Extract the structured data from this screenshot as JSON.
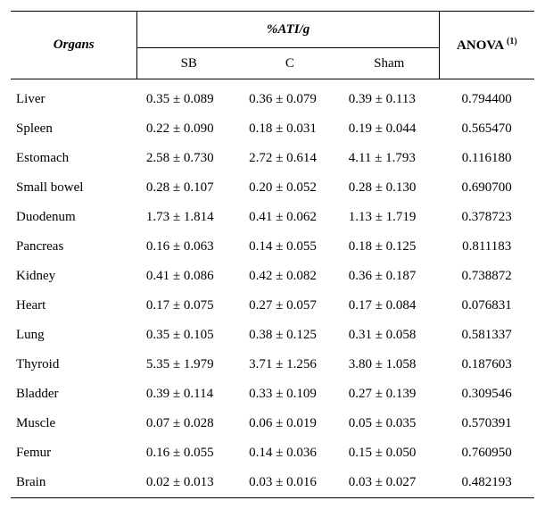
{
  "header": {
    "organs": "Organs",
    "ati": "%ATI/g",
    "anova_label": "ANOVA ",
    "anova_sup": "(1)",
    "sb": "SB",
    "c": "C",
    "sham": "Sham"
  },
  "rows": [
    {
      "organ": "Liver",
      "sb": "0.35 ± 0.089",
      "c": "0.36 ± 0.079",
      "sham": "0.39 ± 0.113",
      "anova": "0.794400"
    },
    {
      "organ": "Spleen",
      "sb": "0.22 ± 0.090",
      "c": "0.18 ± 0.031",
      "sham": "0.19 ± 0.044",
      "anova": "0.565470"
    },
    {
      "organ": "Estomach",
      "sb": "2.58 ± 0.730",
      "c": "2.72 ± 0.614",
      "sham": "4.11 ± 1.793",
      "anova": "0.116180"
    },
    {
      "organ": "Small bowel",
      "sb": "0.28 ± 0.107",
      "c": "0.20 ± 0.052",
      "sham": "0.28 ± 0.130",
      "anova": "0.690700"
    },
    {
      "organ": "Duodenum",
      "sb": "1.73 ± 1.814",
      "c": "0.41 ± 0.062",
      "sham": "1.13 ± 1.719",
      "anova": "0.378723"
    },
    {
      "organ": "Pancreas",
      "sb": "0.16 ± 0.063",
      "c": "0.14 ± 0.055",
      "sham": "0.18 ± 0.125",
      "anova": "0.811183"
    },
    {
      "organ": "Kidney",
      "sb": "0.41 ± 0.086",
      "c": "0.42 ± 0.082",
      "sham": "0.36 ± 0.187",
      "anova": "0.738872"
    },
    {
      "organ": "Heart",
      "sb": "0.17 ± 0.075",
      "c": "0.27 ± 0.057",
      "sham": "0.17 ± 0.084",
      "anova": "0.076831"
    },
    {
      "organ": "Lung",
      "sb": "0.35 ± 0.105",
      "c": "0.38 ± 0.125",
      "sham": "0.31 ± 0.058",
      "anova": "0.581337"
    },
    {
      "organ": "Thyroid",
      "sb": "5.35 ± 1.979",
      "c": "3.71 ± 1.256",
      "sham": "3.80 ± 1.058",
      "anova": "0.187603"
    },
    {
      "organ": "Bladder",
      "sb": "0.39 ± 0.114",
      "c": "0.33 ± 0.109",
      "sham": "0.27 ± 0.139",
      "anova": "0.309546"
    },
    {
      "organ": "Muscle",
      "sb": "0.07 ± 0.028",
      "c": "0.06 ± 0.019",
      "sham": "0.05 ± 0.035",
      "anova": "0.570391"
    },
    {
      "organ": "Femur",
      "sb": "0.16 ± 0.055",
      "c": "0.14 ± 0.036",
      "sham": "0.15 ± 0.050",
      "anova": "0.760950"
    },
    {
      "organ": "Brain",
      "sb": "0.02 ± 0.013",
      "c": "0.03 ± 0.016",
      "sham": "0.03 ± 0.027",
      "anova": "0.482193"
    }
  ]
}
